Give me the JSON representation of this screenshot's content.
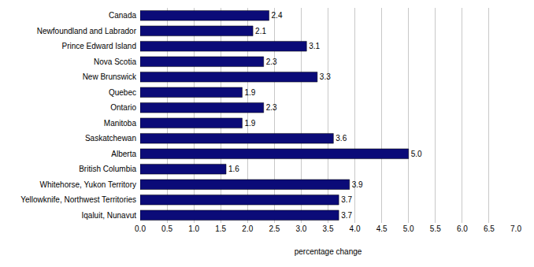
{
  "chart_data": {
    "type": "bar",
    "orientation": "horizontal",
    "x_label": "percentage change",
    "categories": [
      "Canada",
      "Newfoundland and Labrador",
      "Prince Edward Island",
      "Nova Scotia",
      "New Brunswick",
      "Quebec",
      "Ontario",
      "Manitoba",
      "Saskatchewan",
      "Alberta",
      "British Columbia",
      "Whitehorse, Yukon Territory",
      "Yellowknife, Northwest Territories",
      "Iqaluit, Nunavut"
    ],
    "values": [
      2.4,
      2.1,
      3.1,
      2.3,
      3.3,
      1.9,
      2.3,
      1.9,
      3.6,
      5.0,
      1.6,
      3.9,
      3.7,
      3.7
    ],
    "value_labels": [
      "2.4",
      "2.1",
      "3.1",
      "2.3",
      "3.3",
      "1.9",
      "2.3",
      "1.9",
      "3.6",
      "5.0",
      "1.6",
      "3.9",
      "3.7",
      "3.7"
    ],
    "color": "#0b0b78",
    "xlim": [
      0,
      7
    ],
    "xticks": [
      {
        "value": 0,
        "label": "0.0"
      },
      0.5,
      {
        "value": 1,
        "label": "1.0"
      },
      1.5,
      {
        "value": 2,
        "label": "2.0"
      },
      2.5,
      {
        "value": 3,
        "label": "3.0"
      },
      3.5,
      {
        "value": 4,
        "label": "4.0"
      },
      4.5,
      {
        "value": 5,
        "label": "5.0"
      },
      5.5,
      {
        "value": 6,
        "label": "6.0"
      },
      6.5,
      {
        "value": 7,
        "label": "7.0"
      }
    ],
    "grid": true,
    "data_labels": true
  }
}
